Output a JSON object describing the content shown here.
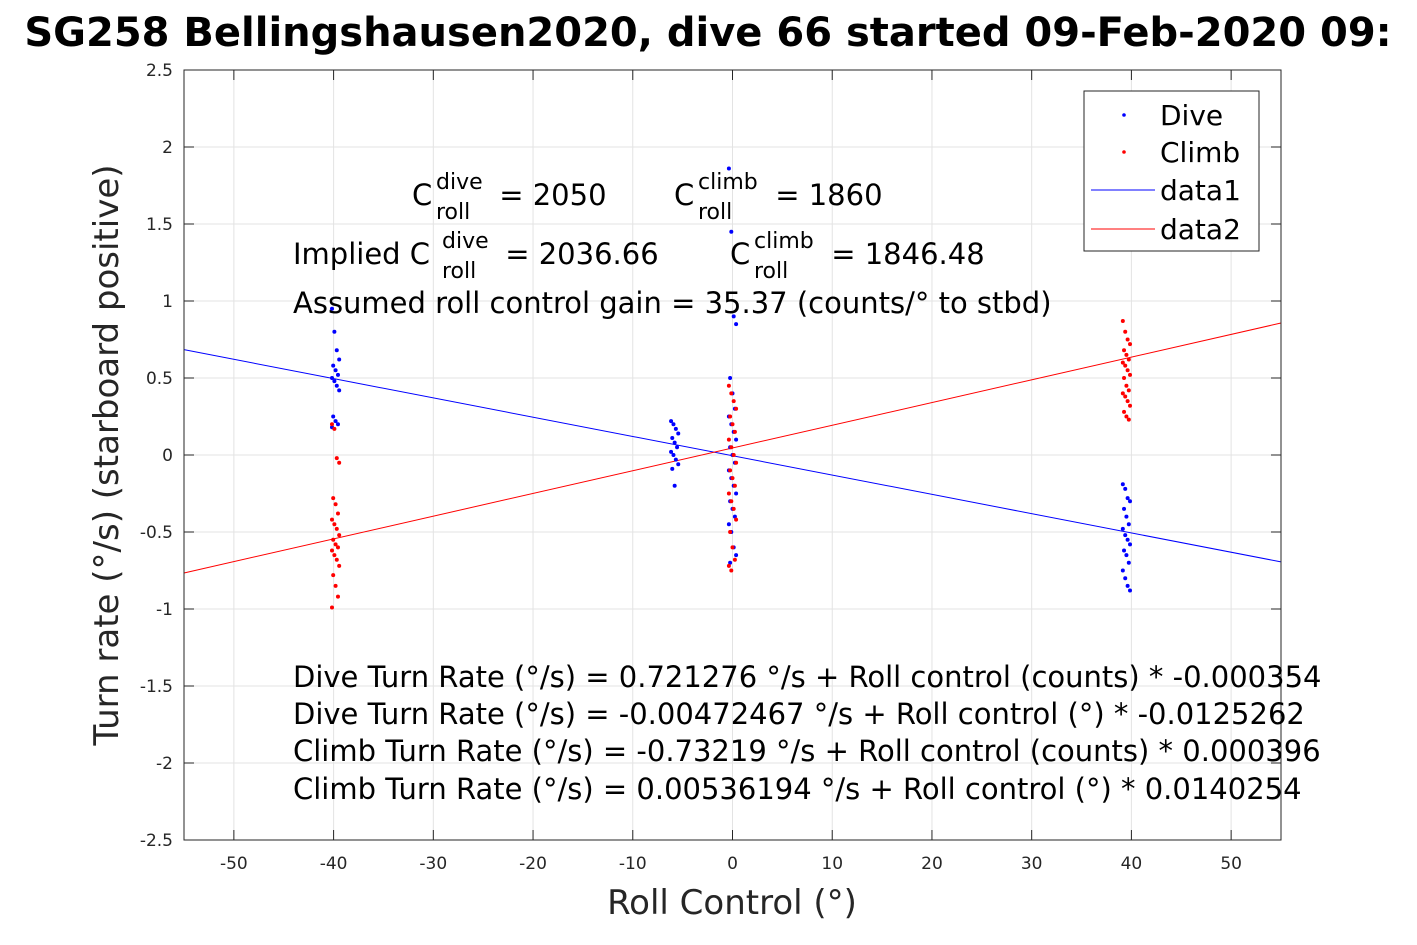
{
  "chart_data": {
    "type": "scatter",
    "title": "SG258 Bellingshausen2020, dive 66 started 09-Feb-2020 09:",
    "xlabel": "Roll Control (°)",
    "ylabel": "Turn rate (°/s) (starboard positive)",
    "xlim": [
      -55,
      55
    ],
    "ylim": [
      -2.5,
      2.5
    ],
    "xticks": [
      -50,
      -40,
      -30,
      -20,
      -10,
      0,
      10,
      20,
      30,
      40,
      50
    ],
    "yticks": [
      -2.5,
      -2,
      -1.5,
      -1,
      -0.5,
      0,
      0.5,
      1,
      1.5,
      2,
      2.5
    ],
    "grid": true,
    "legend_position": "top-right",
    "series": [
      {
        "name": "Dive",
        "kind": "scatter",
        "color": "#0000ff",
        "clusters": [
          {
            "x": -39.8,
            "y": [
              0.95,
              0.8,
              0.68,
              0.62,
              0.58,
              0.55,
              0.52,
              0.5,
              0.48,
              0.45,
              0.42,
              0.25,
              0.22,
              0.2,
              0.18
            ]
          },
          {
            "x": -5.8,
            "y": [
              0.22,
              0.2,
              0.17,
              0.14,
              0.11,
              0.08,
              0.05,
              0.02,
              0.0,
              -0.03,
              -0.06,
              -0.09,
              -0.2
            ]
          },
          {
            "x": 0.0,
            "y": [
              1.86,
              1.45,
              0.9,
              0.85,
              0.5,
              0.4,
              0.3,
              0.25,
              0.2,
              0.15,
              0.1,
              0.05,
              0.0,
              -0.05,
              -0.1,
              -0.15,
              -0.2,
              -0.25,
              -0.3,
              -0.35,
              -0.4,
              -0.45,
              -0.5,
              -0.6,
              -0.65,
              -0.7
            ]
          },
          {
            "x": 39.5,
            "y": [
              -0.19,
              -0.22,
              -0.28,
              -0.3,
              -0.35,
              -0.4,
              -0.45,
              -0.48,
              -0.52,
              -0.55,
              -0.58,
              -0.62,
              -0.65,
              -0.7,
              -0.75,
              -0.8,
              -0.85,
              -0.88
            ]
          }
        ]
      },
      {
        "name": "Climb",
        "kind": "scatter",
        "color": "#ff0000",
        "clusters": [
          {
            "x": -39.8,
            "y": [
              0.2,
              0.17,
              -0.02,
              -0.05,
              -0.28,
              -0.32,
              -0.38,
              -0.42,
              -0.45,
              -0.48,
              -0.52,
              -0.55,
              -0.58,
              -0.6,
              -0.62,
              -0.65,
              -0.68,
              -0.72,
              -0.78,
              -0.85,
              -0.92,
              -0.99
            ]
          },
          {
            "x": 0.0,
            "y": [
              0.45,
              0.4,
              0.35,
              0.3,
              0.25,
              0.2,
              0.15,
              0.1,
              0.05,
              0.0,
              -0.05,
              -0.1,
              -0.15,
              -0.2,
              -0.25,
              -0.3,
              -0.35,
              -0.42,
              -0.5,
              -0.6,
              -0.68,
              -0.72,
              -0.75
            ]
          },
          {
            "x": 39.5,
            "y": [
              0.87,
              0.8,
              0.75,
              0.72,
              0.68,
              0.65,
              0.62,
              0.6,
              0.58,
              0.55,
              0.52,
              0.5,
              0.45,
              0.42,
              0.4,
              0.38,
              0.35,
              0.32,
              0.28,
              0.25,
              0.23
            ]
          }
        ]
      },
      {
        "name": "data1",
        "kind": "line",
        "color": "#0000ff",
        "x": [
          -55,
          55
        ],
        "y": [
          0.684,
          -0.694
        ]
      },
      {
        "name": "data2",
        "kind": "line",
        "color": "#ff0000",
        "x": [
          -55,
          55
        ],
        "y": [
          -0.766,
          0.857
        ]
      }
    ],
    "annotations": {
      "c_dive": {
        "base": "C",
        "sup": "dive",
        "sub": "roll",
        "rest": " = 2050"
      },
      "c_climb": {
        "base": "C",
        "sup": "climb",
        "sub": "roll",
        "rest": " = 1860"
      },
      "implied_dive": {
        "prefix": "Implied C",
        "sup": "dive",
        "sub": "roll",
        "rest": " = 2036.66"
      },
      "implied_climb": {
        "base": "C",
        "sup": "climb",
        "sub": "roll",
        "rest": " = 1846.48"
      },
      "gain": "Assumed roll control gain = 35.37 (counts/° to stbd)",
      "eq1": "Dive Turn Rate (°/s) = 0.721276 °/s + Roll control (counts) * -0.000354",
      "eq2": "Dive Turn Rate (°/s) = -0.00472467 °/s + Roll control (°) * -0.0125262",
      "eq3": "Climb Turn Rate (°/s) = -0.73219 °/s + Roll control (counts) * 0.000396",
      "eq4": "Climb Turn Rate (°/s) = 0.00536194 °/s + Roll control (°) * 0.0140254"
    }
  }
}
